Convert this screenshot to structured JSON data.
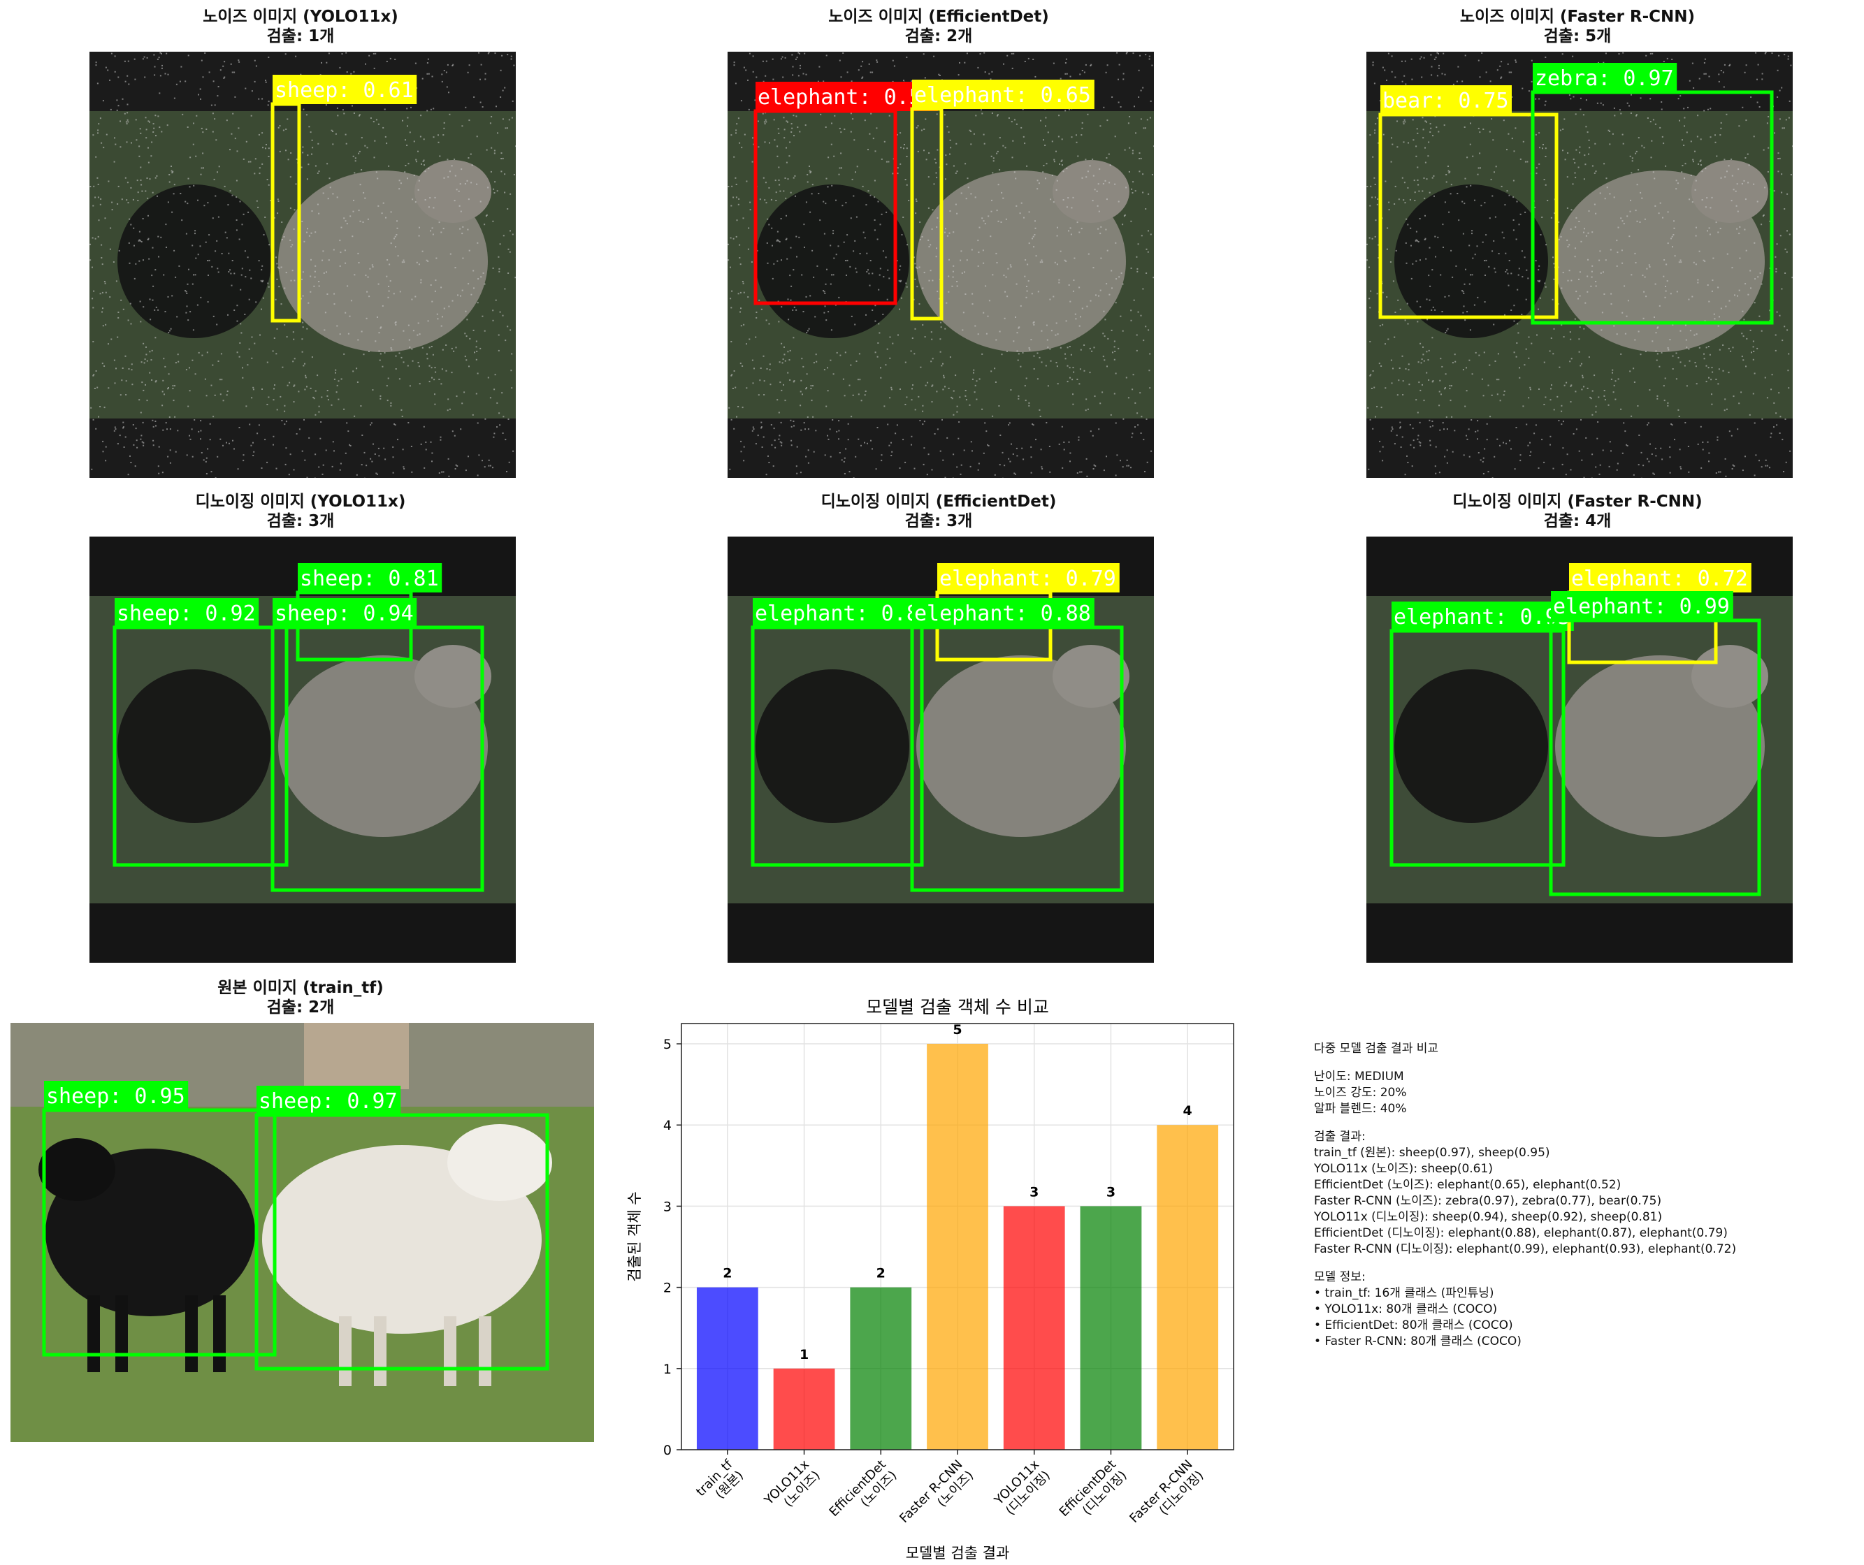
{
  "colors": {
    "blue": "#0000ff",
    "red": "#ff0000",
    "green": "#008000",
    "orange": "#ffa500",
    "box_yellow": "#ffff00",
    "box_green": "#00ff00",
    "box_red": "#ff0000"
  },
  "panels": [
    {
      "id": "noise-yolo",
      "title": "노이즈 이미지 (YOLO11x)",
      "subtitle": "검출: 1개",
      "style": "noise",
      "detections": [
        {
          "label": "sheep: 0.61",
          "color": "box_yellow"
        }
      ]
    },
    {
      "id": "noise-effdet",
      "title": "노이즈 이미지 (EfficientDet)",
      "subtitle": "검출: 2개",
      "style": "noise",
      "detections": [
        {
          "label": "elephant: 0.52",
          "color": "box_red"
        },
        {
          "label": "elephant: 0.65",
          "color": "box_yellow"
        }
      ]
    },
    {
      "id": "noise-frcnn",
      "title": "노이즈 이미지 (Faster R-CNN)",
      "subtitle": "검출: 5개",
      "style": "noise",
      "detections": [
        {
          "label": "bear: 0.75",
          "color": "box_yellow"
        },
        {
          "label": "zebra: 0.97",
          "color": "box_green"
        }
      ]
    },
    {
      "id": "denoise-yolo",
      "title": "디노이징 이미지 (YOLO11x)",
      "subtitle": "검출: 3개",
      "style": "denoise",
      "detections": [
        {
          "label": "sheep: 0.92",
          "color": "box_green"
        },
        {
          "label": "sheep: 0.81",
          "color": "box_green"
        },
        {
          "label": "sheep: 0.94",
          "color": "box_green"
        }
      ]
    },
    {
      "id": "denoise-effdet",
      "title": "디노이징 이미지 (EfficientDet)",
      "subtitle": "검출: 3개",
      "style": "denoise",
      "detections": [
        {
          "label": "elephant: 0.87",
          "color": "box_green"
        },
        {
          "label": "elephant: 0.79",
          "color": "box_yellow"
        },
        {
          "label": "elephant: 0.88",
          "color": "box_green"
        }
      ]
    },
    {
      "id": "denoise-frcnn",
      "title": "디노이징 이미지 (Faster R-CNN)",
      "subtitle": "검출: 4개",
      "style": "denoise",
      "detections": [
        {
          "label": "elephant: 0.93",
          "color": "box_green"
        },
        {
          "label": "elephant: 0.72",
          "color": "box_yellow"
        },
        {
          "label": "elephant: 0.99",
          "color": "box_green"
        }
      ]
    },
    {
      "id": "original",
      "title": "원본 이미지 (train_tf)",
      "subtitle": "검출: 2개",
      "style": "original",
      "detections": [
        {
          "label": "sheep: 0.95",
          "color": "box_green"
        },
        {
          "label": "sheep: 0.97",
          "color": "box_green"
        }
      ]
    }
  ],
  "chart_data": {
    "type": "bar",
    "title": "모델별 검출 객체 수 비교",
    "xlabel": "모델별 검출 결과",
    "ylabel": "검출된 객체 수",
    "categories": [
      "train_tf\n(원본)",
      "YOLO11x\n(노이즈)",
      "EfficientDet\n(노이즈)",
      "Faster R-CNN\n(노이즈)",
      "YOLO11x\n(디노이징)",
      "EfficientDet\n(디노이징)",
      "Faster R-CNN\n(디노이징)"
    ],
    "values": [
      2,
      1,
      2,
      5,
      3,
      3,
      4
    ],
    "bar_colors": [
      "#0000ff",
      "#ff0000",
      "#008000",
      "#ffa500",
      "#ff0000",
      "#008000",
      "#ffa500"
    ],
    "ylim": [
      0,
      5.25
    ],
    "yticks": [
      0,
      1,
      2,
      3,
      4,
      5
    ],
    "grid": true
  },
  "summary": {
    "heading": "다중 모델 검출 결과 비교",
    "settings": [
      "난이도: MEDIUM",
      "노이즈 강도: 20%",
      "알파 블렌드: 40%"
    ],
    "results_heading": "검출 결과:",
    "results": [
      "train_tf (원본): sheep(0.97), sheep(0.95)",
      "YOLO11x (노이즈): sheep(0.61)",
      "EfficientDet (노이즈): elephant(0.65), elephant(0.52)",
      "Faster R-CNN (노이즈): zebra(0.97), zebra(0.77), bear(0.75)",
      "YOLO11x (디노이징): sheep(0.94), sheep(0.92), sheep(0.81)",
      "EfficientDet (디노이징): elephant(0.88), elephant(0.87), elephant(0.79)",
      "Faster R-CNN (디노이징): elephant(0.99), elephant(0.93), elephant(0.72)"
    ],
    "models_heading": "모델 정보:",
    "models": [
      "• train_tf: 16개 클래스 (파인튜닝)",
      "• YOLO11x: 80개 클래스 (COCO)",
      "• EfficientDet: 80개 클래스 (COCO)",
      "• Faster R-CNN: 80개 클래스 (COCO)"
    ]
  }
}
